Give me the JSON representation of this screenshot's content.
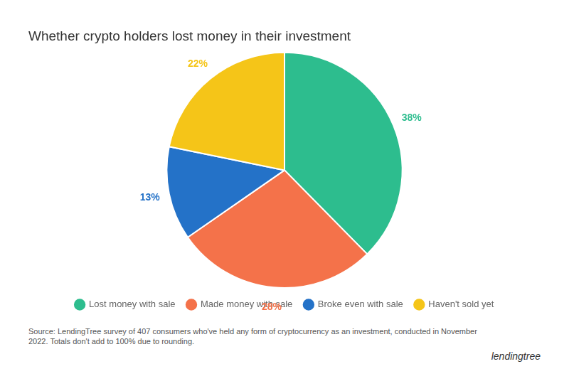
{
  "chart_data": {
    "type": "pie",
    "title": "Whether crypto holders lost money in their investment",
    "categories": [
      "Lost money with sale",
      "Made money with sale",
      "Broke even with sale",
      "Haven't sold yet"
    ],
    "values": [
      38,
      28,
      13,
      22
    ],
    "value_labels": [
      "38%",
      "28%",
      "13%",
      "22%"
    ],
    "colors": [
      "#2DBD8E",
      "#F4724A",
      "#2472C8",
      "#F5C518"
    ],
    "data_labels": true,
    "legend": "bottom",
    "annotations": [
      "Source: LendingTree survey of 407 consumers who've held any form of cryptocurrency as an investment, conducted in November\n2022. Totals don't add to 100% due to rounding.",
      "lendingtree"
    ]
  }
}
